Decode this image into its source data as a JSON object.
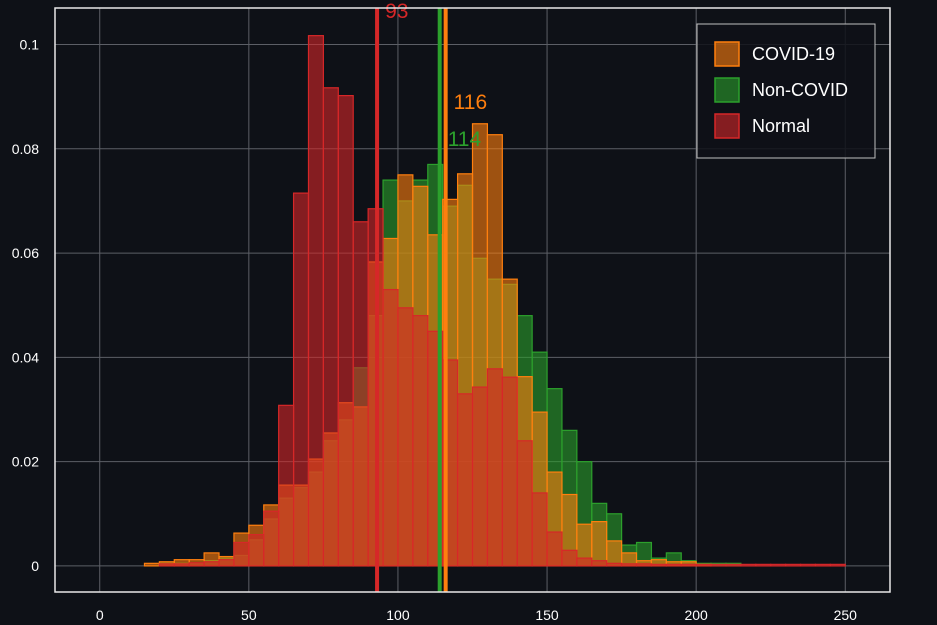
{
  "chart_data": {
    "type": "histogram",
    "xlim": [
      -15,
      265
    ],
    "ylim": [
      -0.005,
      0.107
    ],
    "x_ticks": [
      "0",
      "50",
      "100",
      "150",
      "200",
      "250"
    ],
    "x_tick_values": [
      0,
      50,
      100,
      150,
      200,
      250
    ],
    "y_ticks": [
      "0",
      "0.02",
      "0.04",
      "0.06",
      "0.08",
      "0.1"
    ],
    "y_tick_values": [
      0,
      0.02,
      0.04,
      0.06,
      0.08,
      0.1
    ],
    "grid": true,
    "legend_position": "top-right",
    "bin_width": 5,
    "series": [
      {
        "name": "Non-COVID",
        "color": "#2ca02c",
        "bins": [
          {
            "x0": 20,
            "y": 0.0005
          },
          {
            "x0": 25,
            "y": 0.0005
          },
          {
            "x0": 30,
            "y": 0.0005
          },
          {
            "x0": 35,
            "y": 0.001
          },
          {
            "x0": 40,
            "y": 0.0015
          },
          {
            "x0": 45,
            "y": 0.002
          },
          {
            "x0": 50,
            "y": 0.005
          },
          {
            "x0": 55,
            "y": 0.009
          },
          {
            "x0": 60,
            "y": 0.013
          },
          {
            "x0": 65,
            "y": 0.015
          },
          {
            "x0": 70,
            "y": 0.018
          },
          {
            "x0": 75,
            "y": 0.024
          },
          {
            "x0": 80,
            "y": 0.028
          },
          {
            "x0": 85,
            "y": 0.038
          },
          {
            "x0": 90,
            "y": 0.048
          },
          {
            "x0": 95,
            "y": 0.074
          },
          {
            "x0": 100,
            "y": 0.07
          },
          {
            "x0": 105,
            "y": 0.074
          },
          {
            "x0": 110,
            "y": 0.077
          },
          {
            "x0": 115,
            "y": 0.069
          },
          {
            "x0": 120,
            "y": 0.073
          },
          {
            "x0": 125,
            "y": 0.059
          },
          {
            "x0": 130,
            "y": 0.055
          },
          {
            "x0": 135,
            "y": 0.054
          },
          {
            "x0": 140,
            "y": 0.048
          },
          {
            "x0": 145,
            "y": 0.041
          },
          {
            "x0": 150,
            "y": 0.034
          },
          {
            "x0": 155,
            "y": 0.026
          },
          {
            "x0": 160,
            "y": 0.02
          },
          {
            "x0": 165,
            "y": 0.012
          },
          {
            "x0": 170,
            "y": 0.01
          },
          {
            "x0": 175,
            "y": 0.004
          },
          {
            "x0": 180,
            "y": 0.0045
          },
          {
            "x0": 185,
            "y": 0.0015
          },
          {
            "x0": 190,
            "y": 0.0025
          },
          {
            "x0": 195,
            "y": 0.001
          },
          {
            "x0": 200,
            "y": 0.0005
          },
          {
            "x0": 205,
            "y": 0.0005
          },
          {
            "x0": 210,
            "y": 0.0005
          }
        ]
      },
      {
        "name": "COVID-19",
        "color": "#ff7f0e",
        "bins": [
          {
            "x0": 15,
            "y": 0.0005
          },
          {
            "x0": 20,
            "y": 0.0008
          },
          {
            "x0": 25,
            "y": 0.0012
          },
          {
            "x0": 30,
            "y": 0.0012
          },
          {
            "x0": 35,
            "y": 0.0025
          },
          {
            "x0": 40,
            "y": 0.0018
          },
          {
            "x0": 45,
            "y": 0.0063
          },
          {
            "x0": 50,
            "y": 0.0078
          },
          {
            "x0": 55,
            "y": 0.0117
          },
          {
            "x0": 60,
            "y": 0.0155
          },
          {
            "x0": 65,
            "y": 0.0155
          },
          {
            "x0": 70,
            "y": 0.0205
          },
          {
            "x0": 75,
            "y": 0.0255
          },
          {
            "x0": 80,
            "y": 0.0313
          },
          {
            "x0": 85,
            "y": 0.0305
          },
          {
            "x0": 90,
            "y": 0.0583
          },
          {
            "x0": 95,
            "y": 0.0628
          },
          {
            "x0": 100,
            "y": 0.075
          },
          {
            "x0": 105,
            "y": 0.0728
          },
          {
            "x0": 110,
            "y": 0.0635
          },
          {
            "x0": 115,
            "y": 0.0703
          },
          {
            "x0": 120,
            "y": 0.0752
          },
          {
            "x0": 125,
            "y": 0.0848
          },
          {
            "x0": 130,
            "y": 0.0827
          },
          {
            "x0": 135,
            "y": 0.055
          },
          {
            "x0": 140,
            "y": 0.0363
          },
          {
            "x0": 145,
            "y": 0.0295
          },
          {
            "x0": 150,
            "y": 0.018
          },
          {
            "x0": 155,
            "y": 0.0137
          },
          {
            "x0": 160,
            "y": 0.008
          },
          {
            "x0": 165,
            "y": 0.0085
          },
          {
            "x0": 170,
            "y": 0.0048
          },
          {
            "x0": 175,
            "y": 0.0025
          },
          {
            "x0": 180,
            "y": 0.001
          },
          {
            "x0": 185,
            "y": 0.0012
          },
          {
            "x0": 190,
            "y": 0.0008
          },
          {
            "x0": 195,
            "y": 0.0008
          },
          {
            "x0": 200,
            "y": 0.0003
          }
        ]
      },
      {
        "name": "Normal",
        "color": "#d62728",
        "bins": [
          {
            "x0": 20,
            "y": 0.0004
          },
          {
            "x0": 25,
            "y": 0.0004
          },
          {
            "x0": 30,
            "y": 0.0006
          },
          {
            "x0": 35,
            "y": 0.0008
          },
          {
            "x0": 40,
            "y": 0.0012
          },
          {
            "x0": 45,
            "y": 0.0045
          },
          {
            "x0": 50,
            "y": 0.006
          },
          {
            "x0": 55,
            "y": 0.0105
          },
          {
            "x0": 60,
            "y": 0.0308
          },
          {
            "x0": 65,
            "y": 0.0715
          },
          {
            "x0": 70,
            "y": 0.1017
          },
          {
            "x0": 75,
            "y": 0.0917
          },
          {
            "x0": 80,
            "y": 0.0902
          },
          {
            "x0": 85,
            "y": 0.066
          },
          {
            "x0": 90,
            "y": 0.0685
          },
          {
            "x0": 95,
            "y": 0.053
          },
          {
            "x0": 100,
            "y": 0.0495
          },
          {
            "x0": 105,
            "y": 0.048
          },
          {
            "x0": 110,
            "y": 0.045
          },
          {
            "x0": 115,
            "y": 0.0395
          },
          {
            "x0": 120,
            "y": 0.033
          },
          {
            "x0": 125,
            "y": 0.0343
          },
          {
            "x0": 130,
            "y": 0.0378
          },
          {
            "x0": 135,
            "y": 0.0362
          },
          {
            "x0": 140,
            "y": 0.024
          },
          {
            "x0": 145,
            "y": 0.014
          },
          {
            "x0": 150,
            "y": 0.0065
          },
          {
            "x0": 155,
            "y": 0.003
          },
          {
            "x0": 160,
            "y": 0.0015
          },
          {
            "x0": 165,
            "y": 0.001
          },
          {
            "x0": 170,
            "y": 0.0005
          },
          {
            "x0": 175,
            "y": 0.0004
          },
          {
            "x0": 180,
            "y": 0.0004
          },
          {
            "x0": 185,
            "y": 0.0003
          },
          {
            "x0": 190,
            "y": 0.0003
          },
          {
            "x0": 195,
            "y": 0.0003
          },
          {
            "x0": 200,
            "y": 0.0003
          },
          {
            "x0": 205,
            "y": 0.0003
          },
          {
            "x0": 210,
            "y": 0.0003
          },
          {
            "x0": 215,
            "y": 0.0003
          },
          {
            "x0": 220,
            "y": 0.0003
          },
          {
            "x0": 225,
            "y": 0.0003
          },
          {
            "x0": 230,
            "y": 0.0003
          },
          {
            "x0": 235,
            "y": 0.0003
          },
          {
            "x0": 240,
            "y": 0.0003
          },
          {
            "x0": 245,
            "y": 0.0003
          }
        ]
      }
    ],
    "mean_lines": [
      {
        "series": "Normal",
        "x": 93,
        "label": "93",
        "color": "#d62728"
      },
      {
        "series": "Non-COVID",
        "x": 114,
        "label": "114",
        "color": "#2ca02c"
      },
      {
        "series": "COVID-19",
        "x": 116,
        "label": "116",
        "color": "#ff7f0e"
      }
    ],
    "legend": [
      {
        "label": "COVID-19",
        "color": "#ff7f0e"
      },
      {
        "label": "Non-COVID",
        "color": "#2ca02c"
      },
      {
        "label": "Normal",
        "color": "#d62728"
      }
    ]
  }
}
